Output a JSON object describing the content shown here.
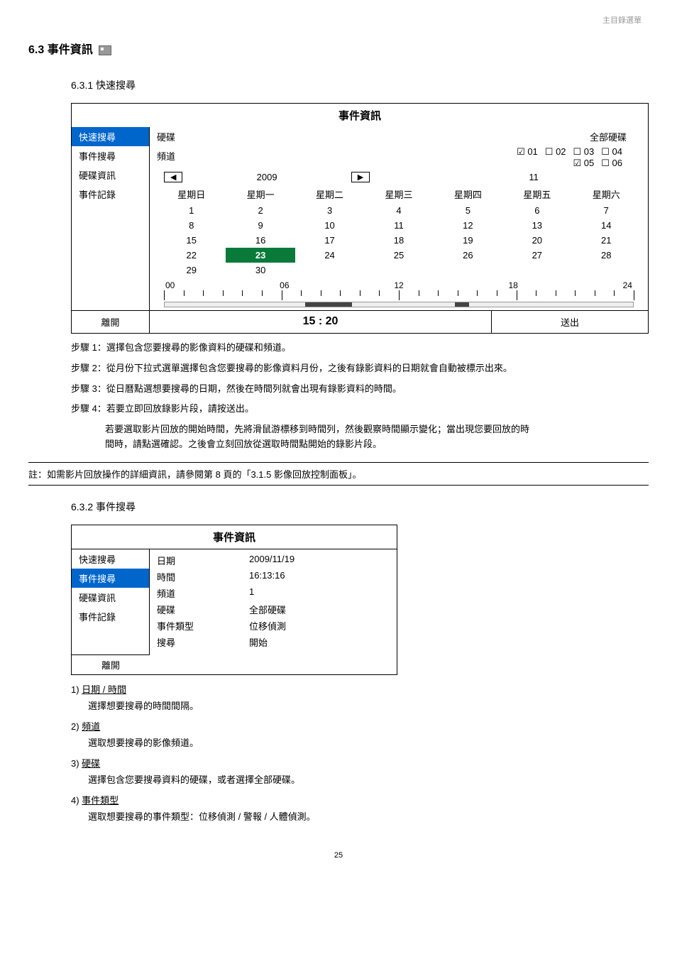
{
  "header": {
    "top_right": "主目錄選單"
  },
  "section": {
    "heading_num": "6.3",
    "heading_text": "事件資訊"
  },
  "sub1": {
    "heading": "6.3.1  快速搜尋",
    "panel_title": "事件資訊",
    "sidebar": [
      "快速搜尋",
      "事件搜尋",
      "硬碟資訊",
      "事件記錄"
    ],
    "active_sidebar_index": 0,
    "hdd_label": "硬碟",
    "hdd_value": "全部硬碟",
    "channel_label": "頻道",
    "channels": [
      {
        "id": "01",
        "checked": true
      },
      {
        "id": "02",
        "checked": false
      },
      {
        "id": "03",
        "checked": false
      },
      {
        "id": "04",
        "checked": false
      },
      {
        "id": "05",
        "checked": true
      },
      {
        "id": "06",
        "checked": false
      }
    ],
    "nav_prev": "◀",
    "nav_year": "2009",
    "nav_next": "▶",
    "nav_month": "11",
    "weekdays": [
      "星期日",
      "星期一",
      "星期二",
      "星期三",
      "星期四",
      "星期五",
      "星期六"
    ],
    "calendar": [
      [
        "1",
        "2",
        "3",
        "4",
        "5",
        "6",
        "7"
      ],
      [
        "8",
        "9",
        "10",
        "11",
        "12",
        "13",
        "14"
      ],
      [
        "15",
        "16",
        "17",
        "18",
        "19",
        "20",
        "21"
      ],
      [
        "22",
        "23",
        "24",
        "25",
        "26",
        "27",
        "28"
      ],
      [
        "29",
        "30",
        "",
        "",
        "",
        "",
        ""
      ]
    ],
    "highlight_cell": {
      "row": 3,
      "col": 1
    },
    "timeline_labels": [
      "00",
      "06",
      "12",
      "18",
      "24"
    ],
    "footer_exit": "離開",
    "footer_time": "15 : 20",
    "footer_send": "送出"
  },
  "steps": [
    "步驟 1：選擇包含您要搜尋的影像資料的硬碟和頻道。",
    "步驟 2：從月份下拉式選單選擇包含您要搜尋的影像資料月份，之後有錄影資料的日期就會自動被標示出來。",
    "步驟 3：從日曆點選想要搜尋的日期，然後在時間列就會出現有錄影資料的時間。",
    "步驟 4：若要立即回放錄影片段，請按送出。"
  ],
  "step4_sub": [
    "若要選取影片回放的開始時間，先將滑鼠游標移到時間列，然後觀察時間顯示變化；當出現您要回放的時",
    "間時，請點選確認。之後會立刻回放從選取時間點開始的錄影片段。"
  ],
  "note": "註：如需影片回放操作的詳細資訊，請參閱第 8 頁的「3.1.5  影像回放控制面板」。",
  "sub2": {
    "heading": "6.3.2  事件搜尋",
    "panel_title": "事件資訊",
    "sidebar": [
      "快速搜尋",
      "事件搜尋",
      "硬碟資訊",
      "事件記錄"
    ],
    "active_sidebar_index": 1,
    "rows": [
      {
        "k": "日期",
        "v": "2009/11/19"
      },
      {
        "k": "時間",
        "v": "16:13:16"
      },
      {
        "k": "頻道",
        "v": "1"
      },
      {
        "k": "硬碟",
        "v": "全部硬碟"
      },
      {
        "k": "事件類型",
        "v": "位移偵測"
      },
      {
        "k": "搜尋",
        "v": "開始"
      }
    ],
    "footer_exit": "離開"
  },
  "defs": [
    {
      "num": "1)",
      "label": "日期 / 時間",
      "desc": "選擇想要搜尋的時間間隔。"
    },
    {
      "num": "2)",
      "label": "頻道",
      "desc": "選取想要搜尋的影像頻道。"
    },
    {
      "num": "3)",
      "label": "硬碟",
      "desc": "選擇包含您要搜尋資料的硬碟，或者選擇全部硬碟。"
    },
    {
      "num": "4)",
      "label": "事件類型",
      "desc": "選取想要搜尋的事件類型：位移偵測 / 警報 / 人體偵測。"
    }
  ],
  "page_num": "25"
}
